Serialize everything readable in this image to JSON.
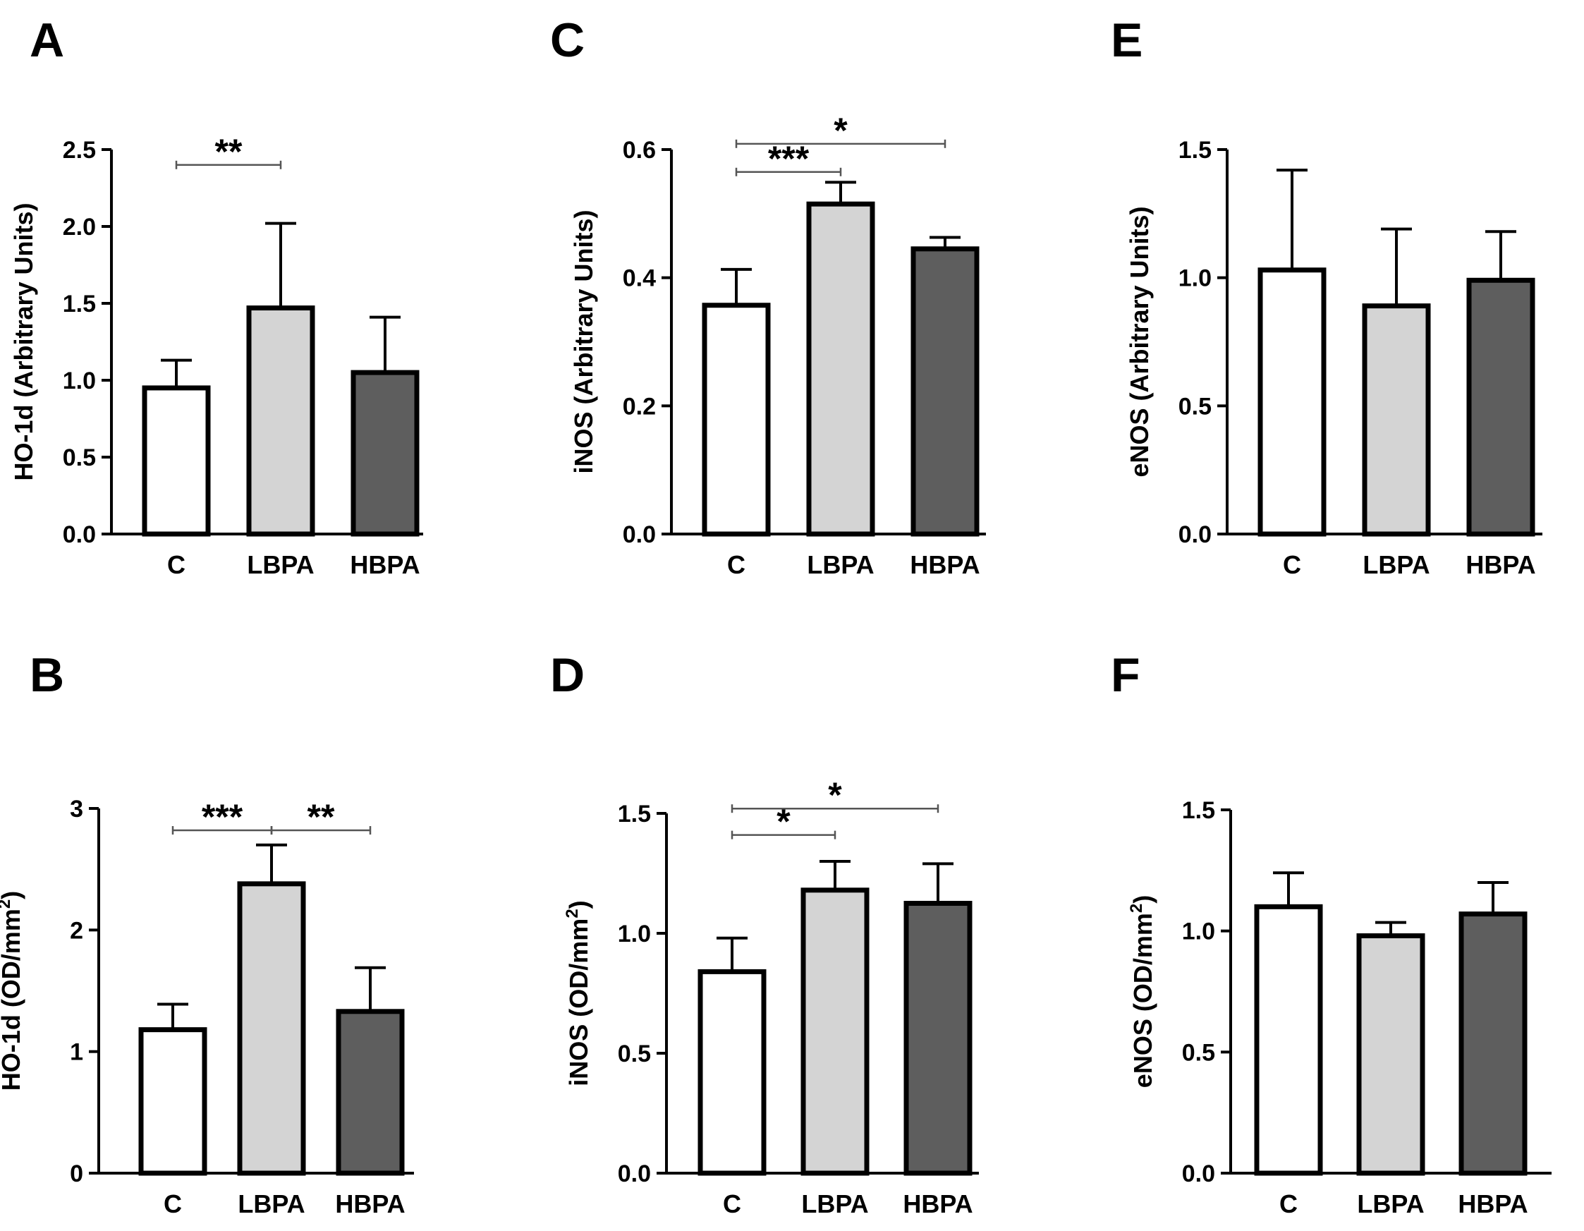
{
  "figure": {
    "colors": {
      "C": "#ffffff",
      "LBPA": "#d4d4d4",
      "HBPA": "#5e5e5e",
      "stroke": "#000000",
      "bracket": "#555555"
    }
  },
  "chart_data": [
    {
      "panel": "A",
      "type": "bar",
      "categories": [
        "C",
        "LBPA",
        "HBPA"
      ],
      "values": [
        0.95,
        1.47,
        1.05
      ],
      "errors": [
        0.18,
        0.55,
        0.36
      ],
      "ylabel": "HO-1d (Arbitrary Units)",
      "ylim": [
        0,
        2.5
      ],
      "yticks": [
        0,
        0.5,
        1,
        1.5,
        2,
        2.5
      ],
      "ytick_labels": [
        "0.0",
        "0.5",
        "1.0",
        "1.5",
        "2.0",
        "2.5"
      ],
      "significance": [
        {
          "from": 0,
          "to": 1,
          "label": "**",
          "y": 2.4
        }
      ]
    },
    {
      "panel": "B",
      "type": "bar",
      "categories": [
        "C",
        "LBPA",
        "HBPA"
      ],
      "values": [
        1.18,
        2.38,
        1.33
      ],
      "errors": [
        0.21,
        0.32,
        0.36
      ],
      "ylabel": "HO-1d (OD/mm",
      "ylabel_sup": "2",
      "ylabel_suffix": ")",
      "ylim": [
        0,
        3
      ],
      "yticks": [
        0,
        1,
        2,
        3
      ],
      "ytick_labels": [
        "0",
        "1",
        "2",
        "3"
      ],
      "significance": [
        {
          "from": 0,
          "to": 1,
          "label": "***",
          "y": 2.82
        },
        {
          "from": 1,
          "to": 2,
          "label": "**",
          "y": 2.82
        }
      ]
    },
    {
      "panel": "C",
      "type": "bar",
      "categories": [
        "C",
        "LBPA",
        "HBPA"
      ],
      "values": [
        0.357,
        0.515,
        0.445
      ],
      "errors": [
        0.056,
        0.034,
        0.018
      ],
      "ylabel": "iNOS (Arbitrary Units)",
      "ylim": [
        0,
        0.6
      ],
      "yticks": [
        0,
        0.2,
        0.4,
        0.6
      ],
      "ytick_labels": [
        "0.0",
        "0.2",
        "0.4",
        "0.6"
      ],
      "significance": [
        {
          "from": 0,
          "to": 1,
          "label": "***",
          "y": 0.565
        },
        {
          "from": 0,
          "to": 2,
          "label": "*",
          "y": 0.609
        }
      ]
    },
    {
      "panel": "D",
      "type": "bar",
      "categories": [
        "C",
        "LBPA",
        "HBPA"
      ],
      "values": [
        0.84,
        1.18,
        1.125
      ],
      "errors": [
        0.14,
        0.12,
        0.165
      ],
      "ylabel": "iNOS (OD/mm",
      "ylabel_sup": "2",
      "ylabel_suffix": ")",
      "ylim": [
        0,
        1.5
      ],
      "yticks": [
        0,
        0.5,
        1,
        1.5
      ],
      "ytick_labels": [
        "0.0",
        "0.5",
        "1.0",
        "1.5"
      ],
      "significance": [
        {
          "from": 0,
          "to": 1,
          "label": "*",
          "y": 1.41
        },
        {
          "from": 0,
          "to": 2,
          "label": "*",
          "y": 1.52
        }
      ]
    },
    {
      "panel": "E",
      "type": "bar",
      "categories": [
        "C",
        "LBPA",
        "HBPA"
      ],
      "values": [
        1.03,
        0.89,
        0.99
      ],
      "errors": [
        0.39,
        0.3,
        0.19
      ],
      "ylabel": "eNOS (Arbitrary Units)",
      "ylim": [
        0,
        1.5
      ],
      "yticks": [
        0,
        0.5,
        1,
        1.5
      ],
      "ytick_labels": [
        "0.0",
        "0.5",
        "1.0",
        "1.5"
      ],
      "significance": []
    },
    {
      "panel": "F",
      "type": "bar",
      "categories": [
        "C",
        "LBPA",
        "HBPA"
      ],
      "values": [
        1.1,
        0.98,
        1.07
      ],
      "errors": [
        0.14,
        0.055,
        0.13
      ],
      "ylabel": "eNOS (OD/mm",
      "ylabel_sup": "2",
      "ylabel_suffix": ")",
      "ylim": [
        0,
        1.5
      ],
      "yticks": [
        0,
        0.5,
        1,
        1.5
      ],
      "ytick_labels": [
        "0.0",
        "0.5",
        "1.0",
        "1.5"
      ],
      "significance": []
    }
  ]
}
